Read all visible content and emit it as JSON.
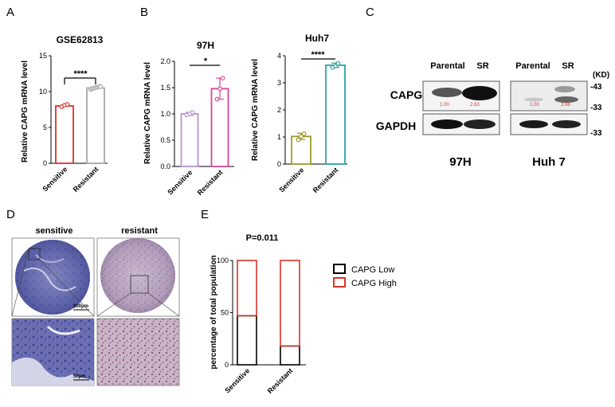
{
  "panel_letters": [
    "A",
    "B",
    "C",
    "D",
    "E"
  ],
  "panels": {
    "A": {
      "title": "GSE62813",
      "ylabel": "Relative CAPG mRNA level",
      "sig": "****",
      "yticks": [
        "0",
        "5",
        "10",
        "15"
      ],
      "categories": [
        "Sensitive",
        "Resistant"
      ]
    },
    "B1": {
      "title": "97H",
      "ylabel": "Relative CAPG mRNA level",
      "sig": "*",
      "yticks": [
        "0.0",
        "0.5",
        "1.0",
        "1.5",
        "2.0"
      ],
      "categories": [
        "Sensitive",
        "Resistant"
      ]
    },
    "B2": {
      "title": "Huh7",
      "ylabel": "Relative CAPG mRNA level",
      "sig": "****",
      "yticks": [
        "0",
        "1",
        "2",
        "3",
        "4"
      ],
      "categories": [
        "Sensitive",
        "Resistant"
      ]
    },
    "C": {
      "col_labels": [
        "Parental",
        "SR",
        "Parental",
        "SR"
      ],
      "kd_label": "(KD)",
      "markers": [
        "-43",
        "-33",
        "-33"
      ],
      "row_labels": [
        "CAPG",
        "GAPDH"
      ],
      "quant": [
        "1.00",
        "2.63",
        "1.00",
        "3.96"
      ],
      "cell_lines": [
        "97H",
        "Huh 7"
      ]
    },
    "D": {
      "labels": [
        "sensitive",
        "resistant"
      ],
      "scale_bars": [
        "200μm",
        "50μm"
      ]
    },
    "E": {
      "pvalue": "P=0.011",
      "ylabel": "percentage of total population",
      "yticks": [
        "0",
        "50",
        "100"
      ],
      "categories": [
        "Sensitive",
        "Resistant"
      ],
      "legend": [
        "CAPG Low",
        "CAPG High"
      ]
    }
  },
  "chart_data": [
    {
      "type": "bar",
      "title": "GSE62813",
      "ylabel": "Relative CAPG mRNA level",
      "categories": [
        "Sensitive",
        "Resistant"
      ],
      "values": [
        8.0,
        10.5
      ],
      "points": [
        [
          7.9,
          8.1,
          8.2
        ],
        [
          10.3,
          10.4,
          10.5,
          10.5,
          10.6,
          10.6,
          10.7,
          10.7
        ]
      ],
      "ylim": [
        0,
        15
      ],
      "colors": [
        "#d9342b",
        "#a8a8a8"
      ]
    },
    {
      "type": "bar",
      "title": "97H",
      "ylabel": "Relative CAPG mRNA level",
      "categories": [
        "Sensitive",
        "Resistant"
      ],
      "values": [
        1.0,
        1.48
      ],
      "errors": [
        0.03,
        0.2
      ],
      "points": [
        [
          0.98,
          1.0,
          1.03
        ],
        [
          1.28,
          1.48,
          1.68
        ]
      ],
      "ylim": [
        0,
        2.0
      ],
      "colors": [
        "#b992cf",
        "#d9479a"
      ]
    },
    {
      "type": "bar",
      "title": "Huh7",
      "ylabel": "Relative CAPG mRNA level",
      "categories": [
        "Sensitive",
        "Resistant"
      ],
      "values": [
        1.02,
        3.65
      ],
      "errors": [
        0.12,
        0.08
      ],
      "points": [
        [
          0.9,
          1.02,
          1.12
        ],
        [
          3.57,
          3.62,
          3.72
        ]
      ],
      "ylim": [
        0,
        4
      ],
      "colors": [
        "#9e9a2a",
        "#2aa5a0"
      ]
    },
    {
      "type": "bar",
      "ylabel": "percentage of total population",
      "categories": [
        "Sensitive",
        "Resistant"
      ],
      "series": [
        {
          "name": "CAPG Low",
          "values": [
            47,
            18
          ]
        },
        {
          "name": "CAPG High",
          "values": [
            53,
            82
          ]
        }
      ],
      "stacked": true,
      "ylim": [
        0,
        100
      ],
      "colors": [
        "#000000",
        "#d9342b"
      ],
      "legend_position": "right"
    }
  ]
}
